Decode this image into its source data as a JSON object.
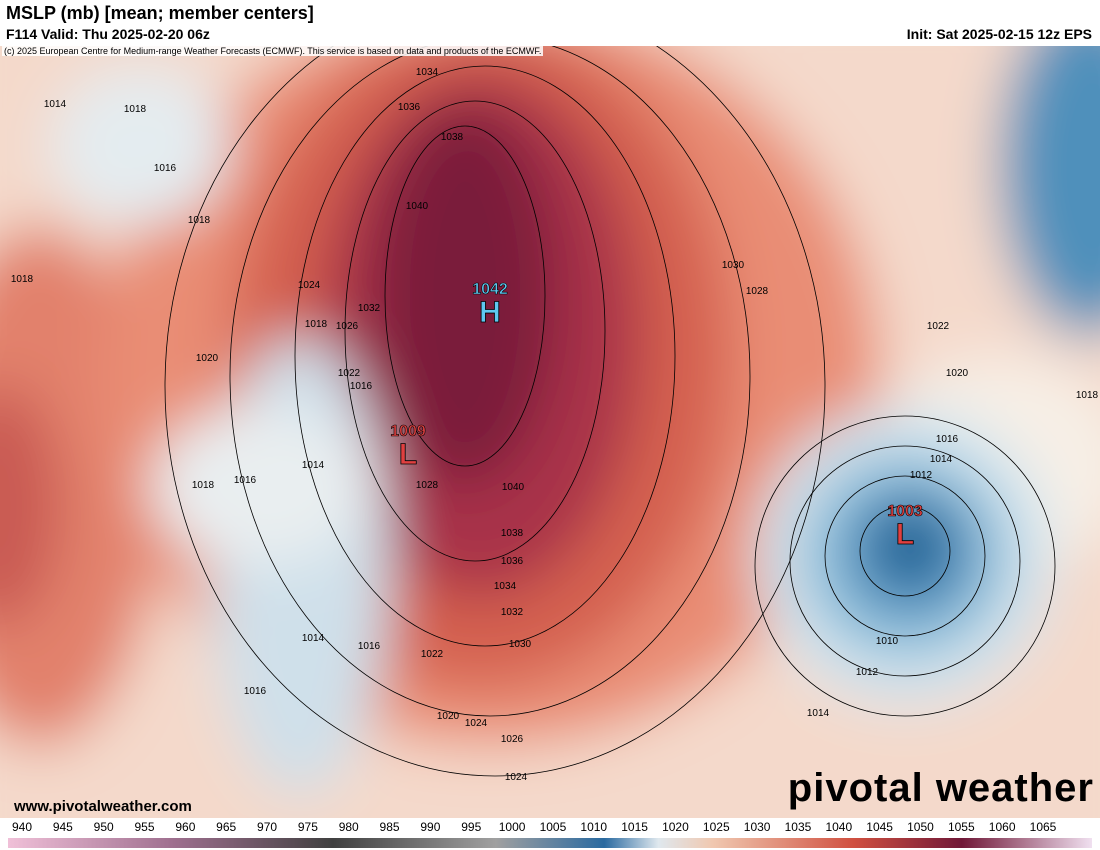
{
  "header": {
    "title": "MSLP (mb) [mean; member centers]",
    "valid": "F114 Valid: Thu 2025-02-20 06z",
    "init": "Init: Sat 2025-02-15 12z EPS",
    "credit": "(c) 2025 European Centre for Medium-range Weather Forecasts (ECMWF). This service is based on data and products of the ECMWF."
  },
  "map": {
    "centers": [
      {
        "symbol": "H",
        "value": "1042"
      },
      {
        "symbol": "L",
        "value": "1009"
      },
      {
        "symbol": "L",
        "value": "1003"
      }
    ],
    "contour_labels": [
      "1034",
      "1036",
      "1038",
      "1040",
      "1014",
      "1018",
      "1016",
      "1018",
      "1018",
      "1024",
      "1032",
      "1026",
      "1018",
      "1020",
      "1022",
      "1016",
      "1014",
      "1016",
      "1018",
      "1028",
      "1040",
      "1038",
      "1036",
      "1034",
      "1032",
      "1030",
      "1014",
      "1016",
      "1022",
      "1020",
      "1024",
      "1026",
      "1024",
      "1016",
      "1030",
      "1028",
      "1022",
      "1020",
      "1018",
      "1016",
      "1014",
      "1012",
      "1010",
      "1012",
      "1014"
    ],
    "site": "www.pivotalweather.com",
    "watermark": "pivotal weather"
  },
  "colorbar": {
    "ticks": [
      940,
      945,
      950,
      955,
      960,
      965,
      970,
      975,
      980,
      985,
      990,
      995,
      1000,
      1005,
      1010,
      1015,
      1020,
      1025,
      1030,
      1035,
      1040,
      1045,
      1050,
      1055,
      1060,
      1065
    ]
  }
}
